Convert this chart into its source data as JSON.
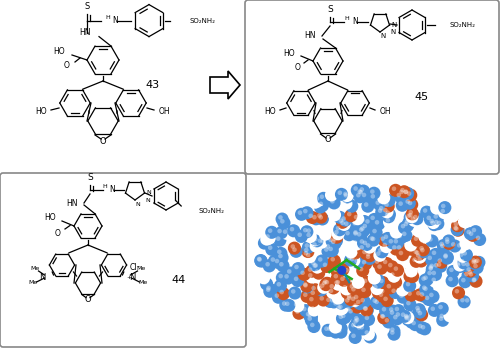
{
  "background": "#ffffff",
  "arrow_color": "#000000",
  "box_color": "#888888",
  "protein_colors": {
    "blue": "#4a90d9",
    "orange": "#cc5522",
    "white": "#ffffff",
    "ligand_green": "#22aa22",
    "zinc_blue": "#0000bb"
  },
  "compound_labels": [
    "43",
    "44",
    "45"
  ],
  "panel_layout": {
    "c43": [
      0.02,
      0.51,
      0.42,
      0.47
    ],
    "c45": [
      0.47,
      0.51,
      0.52,
      0.47
    ],
    "c44": [
      0.02,
      0.02,
      0.44,
      0.47
    ],
    "protein": [
      0.47,
      0.02,
      0.52,
      0.47
    ]
  }
}
